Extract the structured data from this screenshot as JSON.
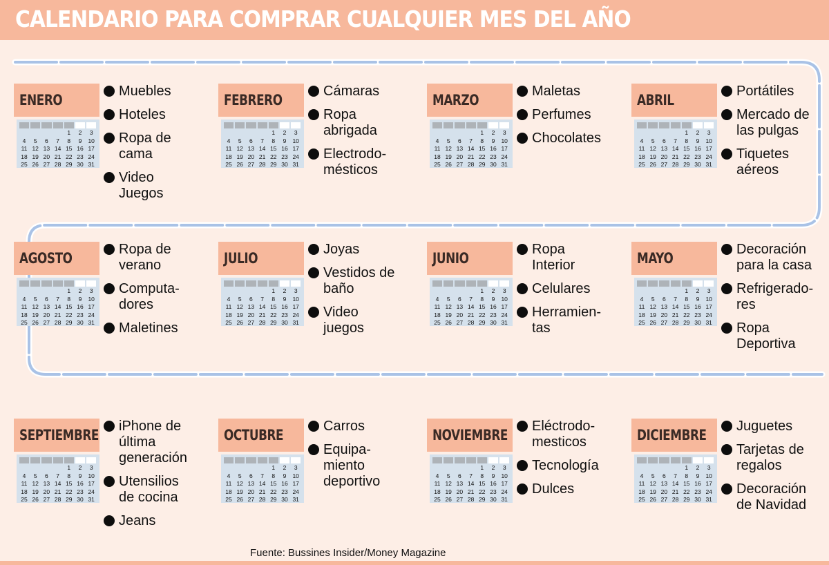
{
  "title": "CALENDARIO PARA COMPRAR CUALQUIER MES DEL AÑO",
  "source": "Fuente: Bussines Insider/Money Magazine",
  "colors": {
    "accent": "#f7b89c",
    "background": "#fdeee6",
    "path": "#a9c2e6",
    "calendar": "#d5e1ec"
  },
  "calendar_days": [
    "1",
    "2",
    "3",
    "4",
    "5",
    "6",
    "7",
    "8",
    "9",
    "10",
    "11",
    "12",
    "13",
    "14",
    "15",
    "16",
    "17",
    "18",
    "19",
    "20",
    "21",
    "22",
    "23",
    "24",
    "25",
    "26",
    "27",
    "28",
    "29",
    "30",
    "31"
  ],
  "months": [
    {
      "name": "ENERO",
      "items": [
        "Muebles",
        "Hoteles",
        "Ropa de\ncama",
        "Video\nJuegos"
      ]
    },
    {
      "name": "FEBRERO",
      "items": [
        "Cámaras",
        "Ropa\nabrigada",
        "Electrodo-\nmésticos"
      ]
    },
    {
      "name": "MARZO",
      "items": [
        "Maletas",
        "Perfumes",
        "Chocolates"
      ]
    },
    {
      "name": "ABRIL",
      "items": [
        "Portátiles",
        "Mercado de\nlas pulgas",
        "Tiquetes\naéreos"
      ]
    },
    {
      "name": "AGOSTO",
      "items": [
        "Ropa de\nverano",
        "Computa-\ndores",
        "Maletines"
      ]
    },
    {
      "name": "JULIO",
      "items": [
        "Joyas",
        "Vestidos de\nbaño",
        "Video\njuegos"
      ]
    },
    {
      "name": "JUNIO",
      "items": [
        "Ropa\nInterior",
        "Celulares",
        "Herramien-\ntas"
      ]
    },
    {
      "name": "MAYO",
      "items": [
        "Decoración\npara la casa",
        "Refrigerado-\nres",
        "Ropa\nDeportiva"
      ]
    },
    {
      "name": "SEPTIEMBRE",
      "items": [
        "iPhone de\núltima\ngeneración",
        "Utensilios\nde cocina",
        "Jeans"
      ]
    },
    {
      "name": "OCTUBRE",
      "items": [
        "Carros",
        "Equipa-\nmiento\ndeportivo"
      ]
    },
    {
      "name": "NOVIEMBRE",
      "items": [
        "Eléctrodo-\nmesticos",
        "Tecnología",
        "Dulces"
      ]
    },
    {
      "name": "DICIEMBRE",
      "items": [
        "Juguetes",
        "Tarjetas de\nregalos",
        "Decoración\nde Navidad"
      ]
    }
  ]
}
